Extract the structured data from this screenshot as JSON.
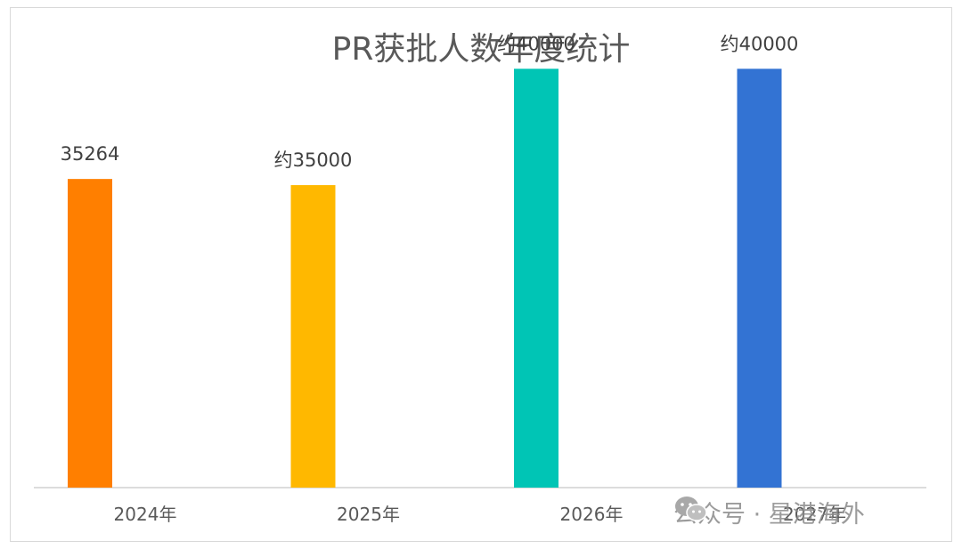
{
  "chart_data": {
    "type": "bar",
    "title": "PR获批人数年度统计",
    "categories": [
      "2024年",
      "2025年",
      "2026年",
      "2027年"
    ],
    "values": [
      35264,
      35000,
      40000,
      40000
    ],
    "data_labels": [
      "35264",
      "约35000",
      "约40000",
      "约40000"
    ],
    "colors": [
      "#ff7f00",
      "#ffb800",
      "#00c5b5",
      "#3373d3"
    ],
    "xlabel": "",
    "ylabel": "",
    "ylim": [
      22000,
      42000
    ],
    "grid": false,
    "legend": "none"
  },
  "watermark": {
    "icon": "wechat-icon",
    "text": "公众号 · 星港海外"
  }
}
